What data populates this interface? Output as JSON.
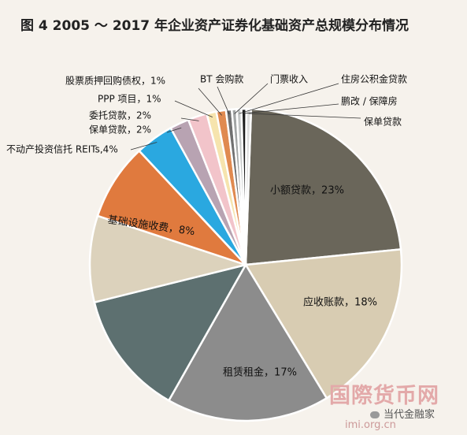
{
  "title": "图 4  2005 ～ 2017 年企业资产证券化基础资产总规模分布情况",
  "chart_data": {
    "type": "pie",
    "title": "图 4  2005 ～ 2017 年企业资产证券化基础资产总规模分布情况",
    "slices": [
      {
        "label": "小额贷款，23%",
        "value": 23,
        "color": "#6a665a"
      },
      {
        "label": "应收账款，18%",
        "value": 18,
        "color": "#d8ccb2"
      },
      {
        "label": "租赁租金，17%",
        "value": 17,
        "color": "#8c8c8c"
      },
      {
        "label": "",
        "value": 13,
        "color": "#5d7070"
      },
      {
        "label": "",
        "value": 9,
        "color": "#dcd2bc"
      },
      {
        "label": "基础设施收费，8%",
        "value": 8,
        "color": "#e07a3e"
      },
      {
        "label": "不动产投资信托 REITs,4%",
        "value": 4,
        "color": "#2aa8e0"
      },
      {
        "label": "保单贷款，2%",
        "value": 2,
        "color": "#b8a3b2"
      },
      {
        "label": "委托贷款，2%",
        "value": 2,
        "color": "#f2c4ca"
      },
      {
        "label": "PPP 项目，1%",
        "value": 1,
        "color": "#f6e4ae"
      },
      {
        "label": "股票质押回购债权，1%",
        "value": 1,
        "color": "#e08a50"
      },
      {
        "label": "BT 会购款",
        "value": 0.6,
        "color": "#707070"
      },
      {
        "label": "门票收入",
        "value": 0.5,
        "color": "#a3a6a6"
      },
      {
        "label": "住房公积金贷款",
        "value": 0.5,
        "color": "#c4c7c7"
      },
      {
        "label": "鹏改 / 保障房",
        "value": 0.5,
        "color": "#1c1c1c"
      },
      {
        "label": "保单贷款",
        "value": 0.5,
        "color": "#dddddd"
      }
    ]
  },
  "watermark": {
    "brand": "国際货币网",
    "social": "当代金融家",
    "url": "imi.org.cn"
  }
}
